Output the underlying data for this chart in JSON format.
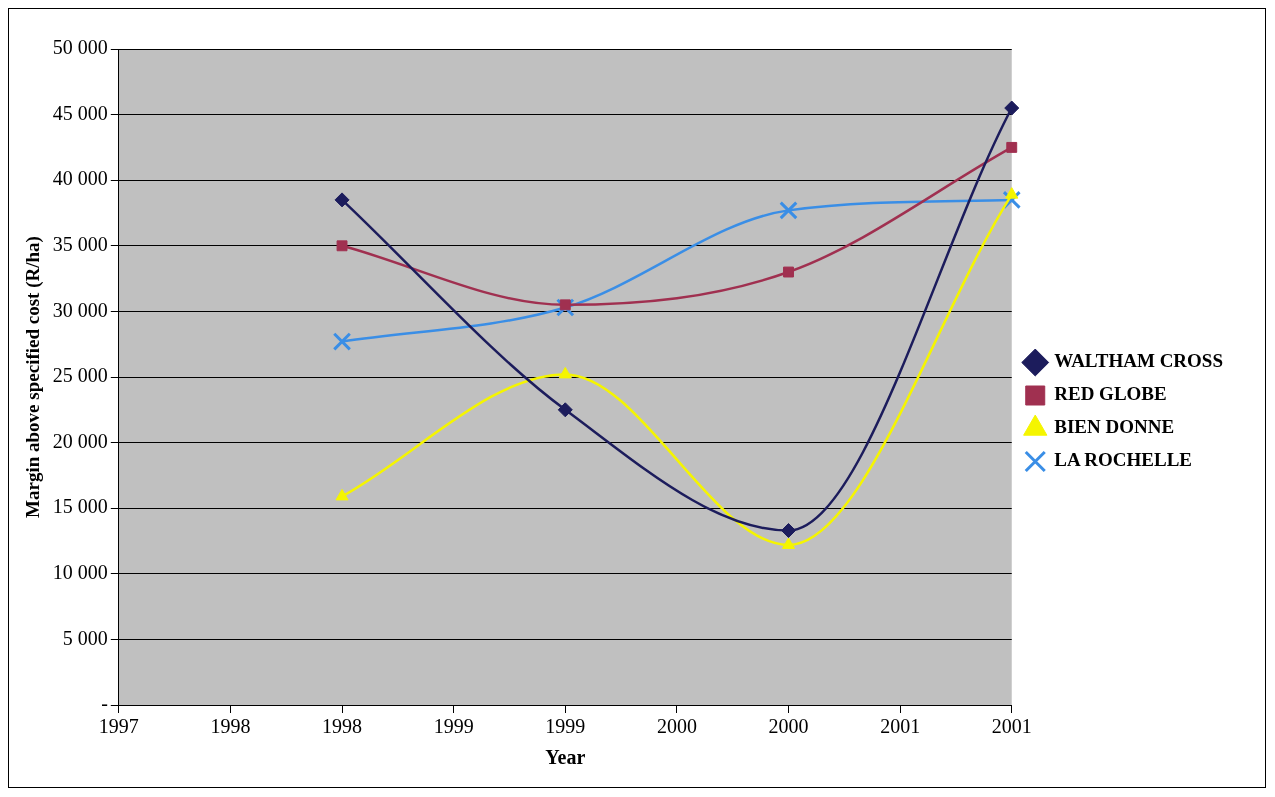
{
  "chart_data": {
    "type": "line",
    "xlabel": "Year",
    "ylabel": "Margin above specified cost (R/ha)",
    "xlim": [
      1997,
      2001
    ],
    "xticks": [
      {
        "value": 1997,
        "label": "1997"
      },
      {
        "value": 1997.5,
        "label": "1998"
      },
      {
        "value": 1998,
        "label": "1998"
      },
      {
        "value": 1998.5,
        "label": "1999"
      },
      {
        "value": 1999,
        "label": "1999"
      },
      {
        "value": 1999.5,
        "label": "2000"
      },
      {
        "value": 2000,
        "label": "2000"
      },
      {
        "value": 2000.5,
        "label": "2001"
      },
      {
        "value": 2001,
        "label": "2001"
      }
    ],
    "ylim": [
      0,
      50000
    ],
    "yticks": [
      {
        "value": 0,
        "label": "-"
      },
      {
        "value": 5000,
        "label": "5 000"
      },
      {
        "value": 10000,
        "label": "10 000"
      },
      {
        "value": 15000,
        "label": "15 000"
      },
      {
        "value": 20000,
        "label": "20 000"
      },
      {
        "value": 25000,
        "label": "25 000"
      },
      {
        "value": 30000,
        "label": "30 000"
      },
      {
        "value": 35000,
        "label": "35 000"
      },
      {
        "value": 40000,
        "label": "40 000"
      },
      {
        "value": 45000,
        "label": "45 000"
      },
      {
        "value": 50000,
        "label": "50 000"
      }
    ],
    "x": [
      1998,
      1999,
      2000,
      2001
    ],
    "grid": "y",
    "legend": "right",
    "series": [
      {
        "name": "WALTHAM CROSS",
        "color": "#1c1c5c",
        "marker": "diamond",
        "values": [
          38500,
          22500,
          13300,
          45500
        ]
      },
      {
        "name": "RED GLOBE",
        "color": "#a03050",
        "marker": "square",
        "values": [
          35000,
          30500,
          33000,
          42500
        ]
      },
      {
        "name": "BIEN DONNE",
        "color": "#f5f500",
        "marker": "triangle",
        "values": [
          15900,
          25200,
          12200,
          38900
        ]
      },
      {
        "name": "LA ROCHELLE",
        "color": "#3a8ee6",
        "marker": "cross",
        "values": [
          27700,
          30300,
          37700,
          38500
        ]
      }
    ]
  }
}
